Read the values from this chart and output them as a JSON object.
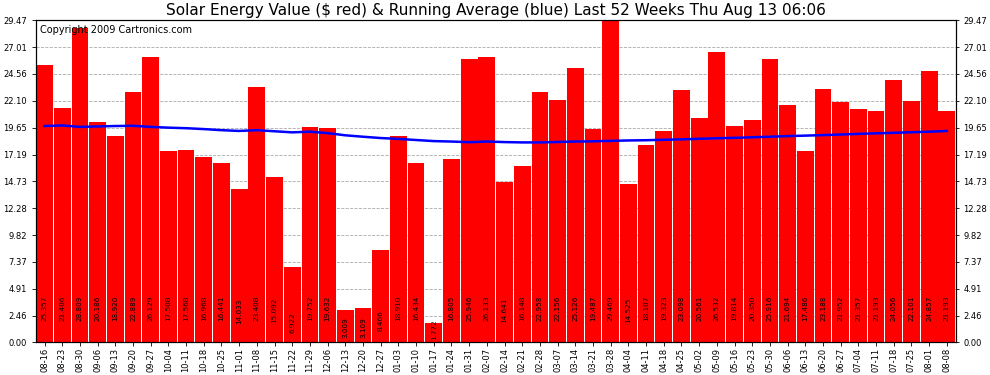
{
  "title": "Solar Energy Value ($ red) & Running Average (blue) Last 52 Weeks Thu Aug 13 06:06",
  "copyright": "Copyright 2009 Cartronics.com",
  "bar_color": "#ff0000",
  "line_color": "#0000ff",
  "background_color": "#ffffff",
  "plot_bg_color": "#ffffff",
  "ylim": [
    0.0,
    29.47
  ],
  "yticks": [
    0.0,
    2.46,
    4.91,
    7.37,
    9.82,
    12.28,
    14.73,
    17.19,
    19.65,
    22.1,
    24.56,
    27.01,
    29.47
  ],
  "categories": [
    "08-16",
    "08-23",
    "08-30",
    "09-06",
    "09-13",
    "09-20",
    "09-27",
    "10-04",
    "10-11",
    "10-18",
    "10-25",
    "11-01",
    "11-08",
    "11-15",
    "11-22",
    "11-29",
    "12-06",
    "12-13",
    "12-20",
    "12-27",
    "01-03",
    "01-10",
    "01-17",
    "01-24",
    "01-31",
    "02-07",
    "02-14",
    "02-21",
    "02-28",
    "03-07",
    "03-14",
    "03-21",
    "03-28",
    "04-04",
    "04-11",
    "04-18",
    "04-25",
    "05-02",
    "05-09",
    "05-16",
    "05-23",
    "05-30",
    "06-06",
    "06-13",
    "06-20",
    "06-27",
    "07-04",
    "07-11",
    "07-18",
    "07-25",
    "08-01",
    "08-08"
  ],
  "bar_values": [
    25.357,
    21.406,
    28.809,
    20.186,
    18.92,
    22.889,
    26.129,
    17.508,
    17.568,
    16.968,
    16.441,
    14.033,
    23.408,
    15.092,
    6.922,
    19.752,
    19.632,
    3.009,
    3.109,
    8.466,
    18.91,
    16.434,
    1.772,
    16.805,
    25.946,
    26.133,
    14.641,
    16.148,
    22.958,
    22.156,
    25.126,
    19.487,
    29.469,
    14.525,
    18.107,
    19.323,
    23.098,
    20.561,
    26.532,
    19.814,
    20.35,
    25.916,
    21.694,
    17.486,
    23.188,
    21.952,
    21.357,
    21.193,
    24.056,
    22.101,
    24.857,
    21.193
  ],
  "running_avg": [
    19.8,
    19.85,
    19.72,
    19.76,
    19.8,
    19.82,
    19.72,
    19.65,
    19.6,
    19.52,
    19.42,
    19.35,
    19.42,
    19.32,
    19.22,
    19.28,
    19.15,
    18.95,
    18.82,
    18.7,
    18.62,
    18.52,
    18.42,
    18.38,
    18.32,
    18.38,
    18.33,
    18.3,
    18.3,
    18.34,
    18.38,
    18.4,
    18.44,
    18.48,
    18.5,
    18.54,
    18.58,
    18.63,
    18.68,
    18.72,
    18.77,
    18.82,
    18.88,
    18.92,
    18.97,
    19.02,
    19.08,
    19.13,
    19.18,
    19.23,
    19.28,
    19.35
  ],
  "grid_color": "#aaaaaa",
  "title_fontsize": 11,
  "tick_fontsize": 6.0,
  "label_fontsize": 5.2,
  "copyright_fontsize": 7
}
